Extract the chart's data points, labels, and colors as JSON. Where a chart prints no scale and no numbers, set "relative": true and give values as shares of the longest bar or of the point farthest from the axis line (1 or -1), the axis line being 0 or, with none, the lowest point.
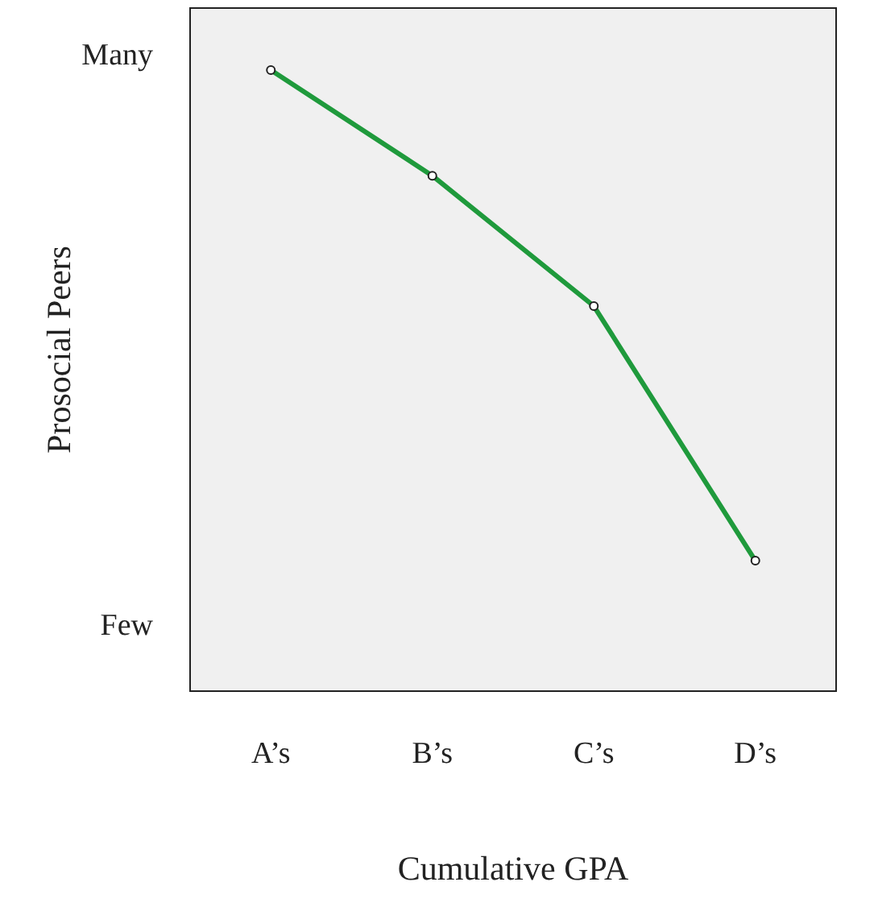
{
  "chart_data": {
    "type": "line",
    "xlabel": "Cumulative GPA",
    "ylabel": "Prosocial Peers",
    "relative": true,
    "categories": [
      "A’s",
      "B’s",
      "C’s",
      "D’s"
    ],
    "series": [
      {
        "color": "#1f9a3c",
        "values": [
          1,
          0.83,
          0.62,
          0.21
        ]
      }
    ],
    "annotations": [
      "Many",
      "Few"
    ],
    "marker": "circle",
    "line_style": "solid"
  }
}
